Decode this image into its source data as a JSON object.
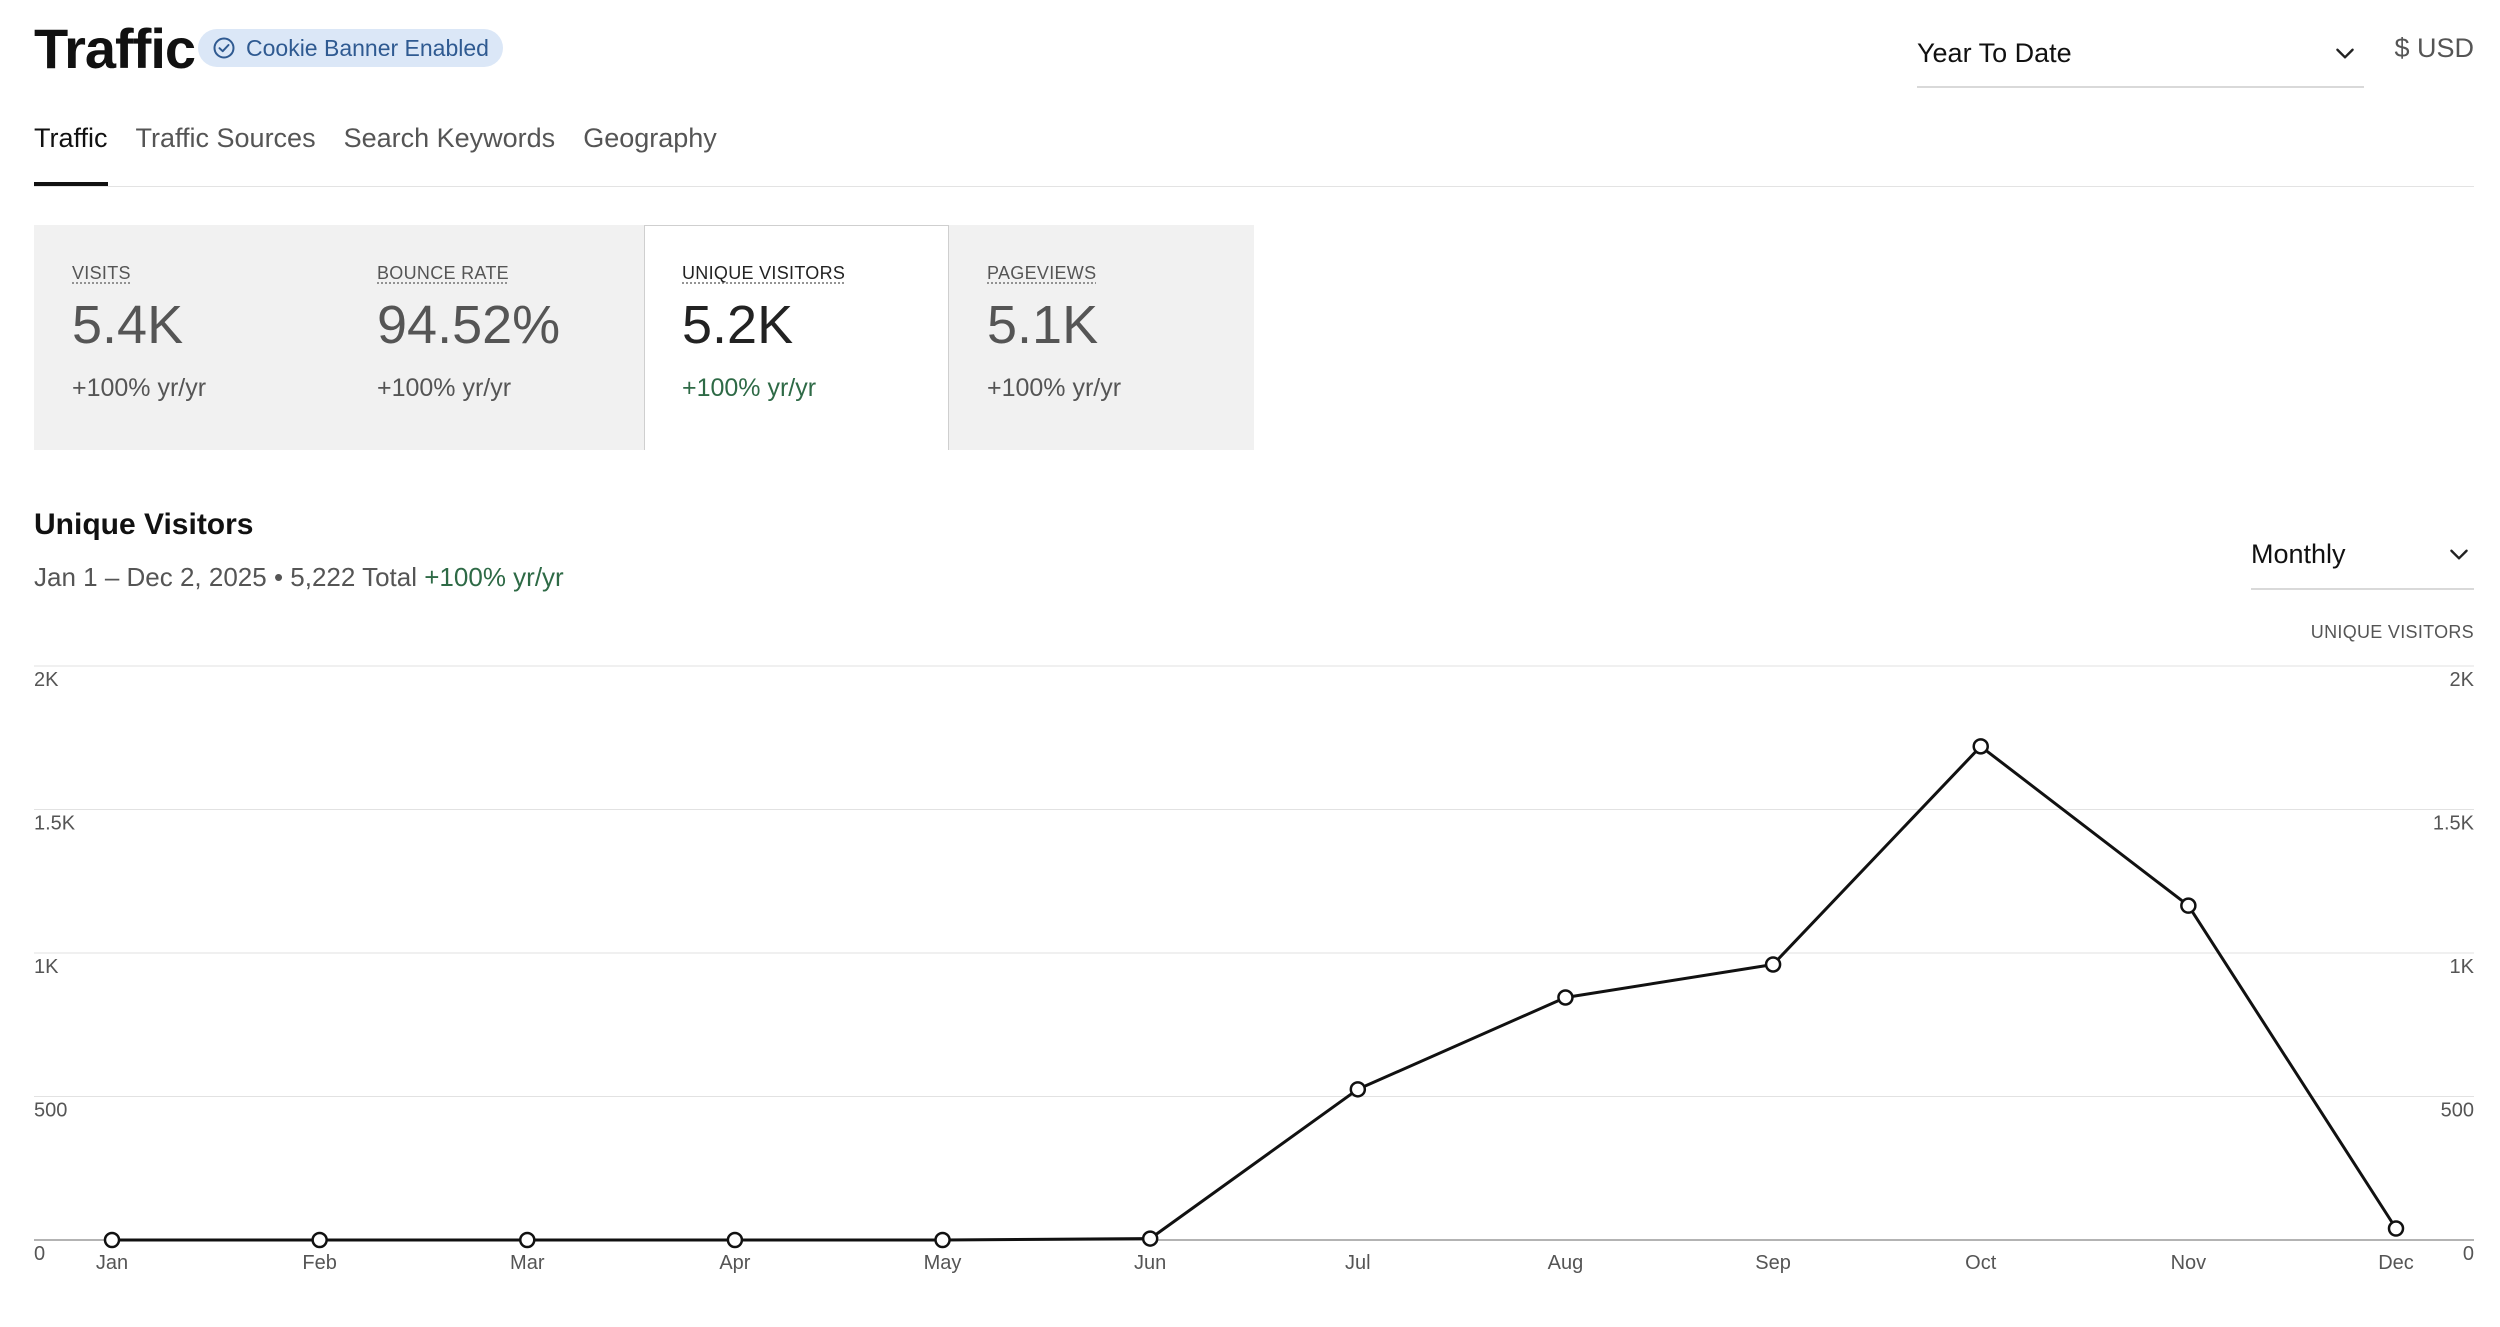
{
  "header": {
    "title": "Traffic",
    "badge": "Cookie Banner Enabled",
    "date_range": "Year To Date",
    "currency": "$ USD"
  },
  "tabs": [
    {
      "label": "Traffic",
      "active": true
    },
    {
      "label": "Traffic Sources",
      "active": false
    },
    {
      "label": "Search Keywords",
      "active": false
    },
    {
      "label": "Geography",
      "active": false
    }
  ],
  "metrics": [
    {
      "label": "VISITS",
      "value": "5.4K",
      "change": "+100% yr/yr",
      "selected": false
    },
    {
      "label": "BOUNCE RATE",
      "value": "94.52%",
      "change": "+100% yr/yr",
      "selected": false
    },
    {
      "label": "UNIQUE VISITORS",
      "value": "5.2K",
      "change": "+100% yr/yr",
      "selected": true
    },
    {
      "label": "PAGEVIEWS",
      "value": "5.1K",
      "change": "+100% yr/yr",
      "selected": false
    }
  ],
  "chart_section": {
    "title": "Unique Visitors",
    "subtitle_range": "Jan 1 – Dec 2, 2025 • 5,222 Total",
    "subtitle_change": "+100% yr/yr",
    "period": "Monthly",
    "series_label": "UNIQUE VISITORS"
  },
  "colors": {
    "accent_positive": "#2e6a46",
    "badge_bg": "#dbe7f7",
    "badge_text": "#2f5a91",
    "line": "#111111"
  },
  "chart_data": {
    "type": "line",
    "categories": [
      "Jan",
      "Feb",
      "Mar",
      "Apr",
      "May",
      "Jun",
      "Jul",
      "Aug",
      "Sep",
      "Oct",
      "Nov",
      "Dec"
    ],
    "series": [
      {
        "values": [
          0,
          0,
          0,
          0,
          0,
          5,
          525,
          845,
          960,
          1720,
          1165,
          40
        ]
      }
    ],
    "yticks": [
      0,
      500,
      1000,
      1500,
      2000
    ],
    "ytick_labels": [
      "0",
      "500",
      "1K",
      "1.5K",
      "2K"
    ],
    "ylim": [
      0,
      2000
    ],
    "grid": true,
    "dual_y_axis_labels": true
  }
}
